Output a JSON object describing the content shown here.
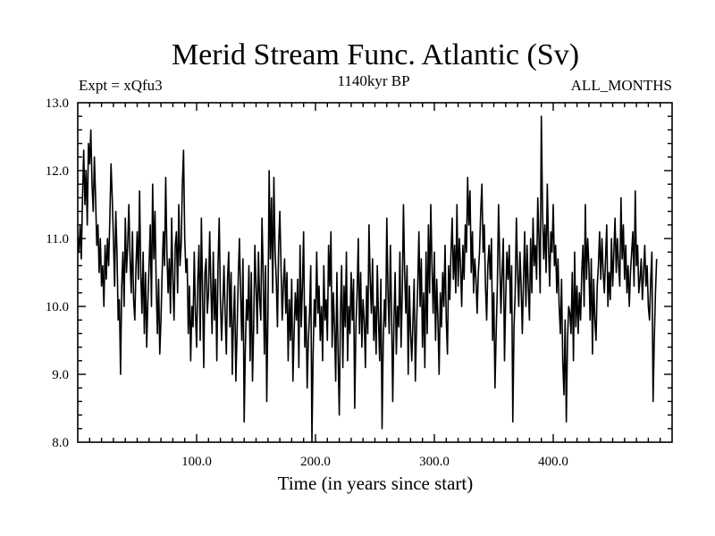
{
  "chart_data": {
    "type": "line",
    "title": "Merid Stream Func. Atlantic (Sv)",
    "subtitle_left": "Expt = xQfu3",
    "subtitle_center": "1140kyr BP",
    "subtitle_right": "ALL_MONTHS",
    "xlabel": "Time (in years since start)",
    "ylabel": "",
    "xlim": [
      0,
      500
    ],
    "ylim": [
      8.0,
      13.0
    ],
    "xticks": [
      100,
      200,
      300,
      400
    ],
    "xtick_labels": [
      "100.0",
      "200.0",
      "300.0",
      "400.0"
    ],
    "yticks": [
      8,
      9,
      10,
      11,
      12,
      13
    ],
    "ytick_labels": [
      "8.0",
      "9.0",
      "10.0",
      "11.0",
      "12.0",
      "13.0"
    ],
    "grid": false,
    "series": [
      {
        "name": "Merid Stream Func. Atlantic",
        "x_start": 0,
        "x_step": 1,
        "values": [
          11.0,
          10.8,
          11.2,
          10.7,
          11.6,
          12.3,
          11.5,
          12.0,
          11.2,
          12.4,
          12.1,
          12.6,
          11.8,
          11.4,
          12.2,
          11.6,
          10.9,
          11.2,
          10.5,
          11.0,
          10.3,
          10.6,
          10.0,
          10.9,
          10.4,
          11.0,
          10.6,
          11.3,
          12.1,
          11.6,
          11.0,
          10.3,
          11.4,
          10.8,
          9.8,
          10.1,
          9.0,
          10.3,
          10.8,
          10.0,
          11.3,
          10.5,
          10.9,
          11.5,
          10.7,
          10.2,
          11.1,
          10.1,
          9.8,
          10.6,
          11.1,
          10.4,
          11.7,
          10.5,
          9.9,
          10.8,
          9.6,
          10.5,
          9.4,
          10.1,
          10.6,
          11.2,
          10.0,
          11.8,
          10.7,
          11.4,
          10.3,
          9.6,
          10.4,
          9.3,
          9.8,
          10.5,
          11.1,
          10.6,
          11.9,
          10.8,
          10.2,
          10.7,
          9.9,
          11.3,
          10.4,
          9.8,
          10.9,
          11.1,
          10.2,
          11.5,
          10.6,
          10.9,
          11.8,
          12.3,
          11.0,
          10.5,
          10.7,
          9.6,
          10.3,
          9.2,
          10.0,
          9.7,
          10.8,
          9.9,
          9.4,
          10.4,
          10.9,
          9.5,
          11.3,
          10.2,
          9.1,
          10.5,
          10.7,
          9.9,
          10.2,
          11.1,
          10.3,
          9.6,
          10.8,
          9.8,
          10.4,
          9.2,
          10.6,
          11.3,
          10.1,
          9.5,
          10.0,
          10.6,
          9.9,
          9.3,
          10.4,
          10.8,
          9.7,
          10.5,
          9.0,
          9.8,
          10.3,
          8.9,
          9.6,
          10.4,
          11.0,
          10.2,
          9.5,
          10.7,
          8.3,
          9.4,
          10.1,
          9.8,
          10.6,
          9.2,
          10.5,
          8.9,
          9.7,
          10.9,
          10.3,
          9.6,
          10.8,
          10.1,
          9.8,
          11.3,
          10.5,
          9.3,
          10.6,
          8.6,
          9.9,
          12.0,
          10.7,
          11.6,
          10.2,
          11.9,
          10.8,
          10.4,
          9.7,
          10.9,
          11.4,
          10.6,
          9.8,
          10.3,
          10.7,
          9.9,
          10.5,
          9.2,
          10.1,
          9.5,
          10.4,
          8.9,
          9.6,
          10.2,
          9.8,
          10.4,
          9.1,
          10.9,
          9.7,
          10.3,
          11.1,
          9.4,
          10.0,
          8.8,
          9.5,
          9.9,
          10.6,
          8.0,
          9.3,
          10.1,
          9.7,
          10.8,
          9.9,
          10.3,
          9.5,
          10.0,
          9.2,
          10.6,
          9.8,
          10.1,
          9.5,
          10.9,
          10.3,
          11.1,
          9.4,
          10.2,
          9.7,
          8.9,
          10.5,
          9.3,
          8.4,
          9.9,
          10.6,
          9.1,
          10.3,
          9.7,
          10.8,
          9.2,
          10.0,
          9.6,
          10.5,
          9.8,
          10.4,
          8.5,
          9.7,
          10.2,
          11.0,
          9.6,
          10.5,
          9.4,
          10.1,
          9.8,
          9.1,
          10.3,
          9.6,
          11.2,
          10.4,
          9.9,
          10.7,
          9.5,
          10.0,
          9.3,
          10.6,
          9.8,
          9.2,
          10.4,
          8.2,
          9.5,
          10.1,
          9.7,
          11.3,
          10.2,
          9.6,
          10.9,
          9.9,
          8.6,
          9.8,
          10.5,
          9.3,
          10.0,
          9.7,
          10.8,
          9.4,
          10.2,
          11.5,
          10.5,
          9.9,
          10.6,
          9.0,
          10.3,
          9.6,
          9.2,
          9.8,
          10.4,
          8.9,
          9.7,
          10.3,
          11.1,
          10.0,
          10.7,
          9.4,
          10.2,
          9.1,
          10.8,
          9.6,
          11.2,
          10.2,
          11.5,
          10.6,
          9.9,
          10.8,
          9.5,
          10.4,
          9.8,
          9.0,
          10.2,
          9.7,
          10.5,
          10.0,
          10.9,
          9.8,
          9.3,
          10.6,
          10.1,
          10.8,
          11.3,
          10.4,
          10.9,
          10.2,
          11.5,
          10.3,
          11.0,
          10.6,
          10.0,
          10.9,
          10.4,
          11.2,
          10.8,
          11.9,
          11.2,
          11.7,
          10.5,
          11.1,
          10.2,
          10.7,
          10.4,
          9.9,
          10.5,
          10.8,
          11.4,
          11.8,
          10.8,
          11.2,
          10.3,
          9.8,
          10.6,
          10.9,
          10.4,
          11.0,
          9.5,
          10.2,
          8.8,
          9.6,
          10.3,
          11.5,
          10.7,
          9.9,
          10.5,
          11.0,
          9.2,
          10.1,
          10.8,
          10.4,
          10.9,
          9.9,
          10.6,
          8.3,
          9.7,
          10.2,
          11.3,
          10.5,
          10.0,
          10.8,
          10.3,
          9.6,
          10.4,
          11.1,
          10.0,
          10.9,
          10.3,
          9.8,
          11.0,
          10.2,
          11.3,
          10.6,
          10.9,
          10.4,
          11.6,
          11.0,
          10.2,
          12.8,
          11.4,
          10.7,
          11.2,
          10.5,
          11.8,
          10.9,
          10.3,
          11.1,
          10.8,
          11.5,
          10.6,
          10.9,
          10.2,
          10.7,
          10.0,
          9.6,
          10.4,
          9.2,
          8.7,
          9.8,
          8.3,
          9.5,
          10.0,
          9.9,
          9.6,
          10.5,
          9.2,
          10.8,
          9.7,
          10.3,
          9.6,
          10.2,
          9.8,
          10.5,
          10.9,
          10.0,
          11.5,
          10.4,
          11.0,
          10.6,
          9.8,
          10.7,
          9.3,
          10.4,
          9.8,
          9.5,
          10.3,
          10.6,
          11.1,
          10.4,
          11.0,
          10.5,
          10.2,
          10.7,
          11.2,
          10.0,
          10.5,
          10.1,
          11.0,
          10.3,
          10.8,
          11.3,
          10.5,
          11.0,
          10.6,
          10.3,
          11.6,
          10.7,
          11.2,
          10.4,
          10.9,
          10.2,
          10.6,
          10.0,
          10.5,
          10.8,
          11.1,
          10.3,
          11.7,
          10.6,
          10.9,
          10.2,
          10.4,
          10.7,
          10.1,
          10.5,
          10.9,
          10.3,
          10.6,
          10.0,
          9.8,
          10.4,
          10.8,
          8.6,
          9.5,
          10.2,
          10.7
        ]
      }
    ]
  }
}
